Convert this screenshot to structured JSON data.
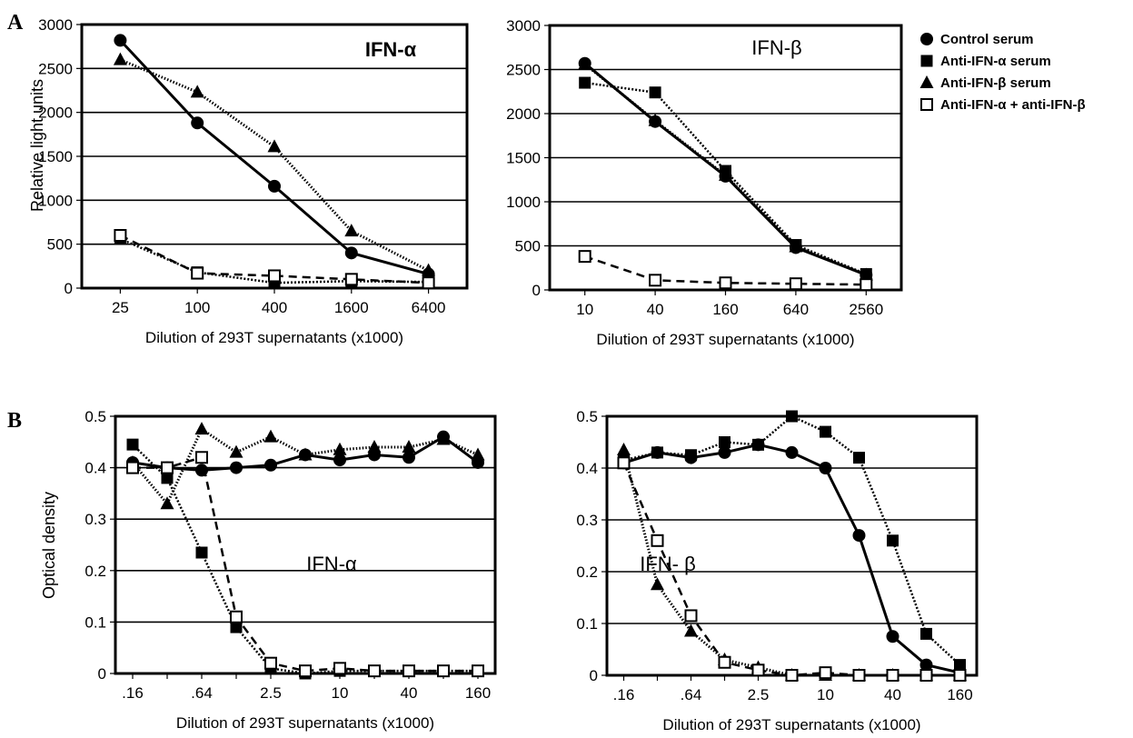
{
  "panels": {
    "A": "A",
    "B": "B"
  },
  "legend": [
    {
      "label": "Control serum",
      "marker": "circle-filled"
    },
    {
      "label": "Anti-IFN-α serum",
      "marker": "square-filled"
    },
    {
      "label": "Anti-IFN-β serum",
      "marker": "triangle-filled"
    },
    {
      "label": "Anti-IFN-α + anti-IFN-β",
      "marker": "square-open"
    }
  ],
  "chart_data": [
    {
      "type": "line",
      "title": "IFN-α",
      "xlabel": "Dilution of 293T supernatants (x1000)",
      "ylabel": "Relative light units",
      "categories": [
        "25",
        "100",
        "400",
        "1600",
        "6400"
      ],
      "ylim": [
        0,
        3000
      ],
      "yticks": [
        "0",
        "500",
        "1000",
        "1500",
        "2000",
        "2500",
        "3000"
      ],
      "grid": "horizontal",
      "series": [
        {
          "name": "Control serum",
          "values": [
            2820,
            1880,
            1160,
            400,
            160
          ]
        },
        {
          "name": "Anti-IFN-α serum",
          "values": [
            560,
            180,
            60,
            80,
            70
          ]
        },
        {
          "name": "Anti-IFN-β serum",
          "values": [
            2600,
            2230,
            1610,
            650,
            200
          ]
        },
        {
          "name": "Anti-IFN-α + anti-IFN-β",
          "values": [
            600,
            170,
            140,
            100,
            60
          ]
        }
      ]
    },
    {
      "type": "line",
      "title": "IFN-β",
      "xlabel": "Dilution of 293T supernatants (x1000)",
      "ylabel": "",
      "categories": [
        "10",
        "40",
        "160",
        "640",
        "2560"
      ],
      "ylim": [
        0,
        3000
      ],
      "yticks": [
        "0",
        "500",
        "1000",
        "1500",
        "2000",
        "2500",
        "3000"
      ],
      "grid": "horizontal",
      "series": [
        {
          "name": "Control serum",
          "values": [
            2570,
            1910,
            1290,
            480,
            170
          ]
        },
        {
          "name": "Anti-IFN-α serum",
          "values": [
            2350,
            2240,
            1350,
            510,
            180
          ]
        },
        {
          "name": "Anti-IFN-β serum",
          "values": [
            2560,
            1920,
            1300,
            490,
            170
          ]
        },
        {
          "name": "Anti-IFN-α + anti-IFN-β",
          "values": [
            380,
            110,
            80,
            70,
            60
          ]
        }
      ]
    },
    {
      "type": "line",
      "title": "IFN-α",
      "xlabel": "Dilution of 293T supernatants (x1000)",
      "ylabel": "Optical density",
      "x": [
        ".16",
        "",
        ".64",
        "",
        "2.5",
        "",
        "10",
        "",
        "40",
        "",
        "160"
      ],
      "xticklabels": [
        ".16",
        ".64",
        "2.5",
        "10",
        "40",
        "160"
      ],
      "ylim": [
        0,
        0.5
      ],
      "yticks": [
        "0",
        "0.1",
        "0.2",
        "0.3",
        "0.4",
        "0.5"
      ],
      "grid": "horizontal",
      "series": [
        {
          "name": "Control serum",
          "values": [
            0.41,
            0.4,
            0.395,
            0.4,
            0.405,
            0.425,
            0.415,
            0.425,
            0.42,
            0.46,
            0.41
          ]
        },
        {
          "name": "Anti-IFN-α serum",
          "values": [
            0.445,
            0.38,
            0.235,
            0.09,
            0.01,
            0.0,
            0.005,
            0.005,
            0.005,
            0.005,
            0.005
          ]
        },
        {
          "name": "Anti-IFN-β serum",
          "values": [
            0.41,
            0.33,
            0.475,
            0.43,
            0.46,
            0.425,
            0.435,
            0.44,
            0.44,
            0.455,
            0.425
          ]
        },
        {
          "name": "Anti-IFN-α + anti-IFN-β",
          "values": [
            0.4,
            0.4,
            0.42,
            0.11,
            0.02,
            0.005,
            0.01,
            0.005,
            0.005,
            0.005,
            0.005
          ]
        }
      ]
    },
    {
      "type": "line",
      "title": "IFN- β",
      "xlabel": "Dilution of 293T supernatants (x1000)",
      "ylabel": "",
      "x": [
        ".16",
        "",
        ".64",
        "",
        "2.5",
        "",
        "10",
        "",
        "40",
        "",
        "160"
      ],
      "xticklabels": [
        ".16",
        ".64",
        "2.5",
        "10",
        "40",
        "160"
      ],
      "ylim": [
        0,
        0.5
      ],
      "yticks": [
        "0",
        "0.1",
        "0.2",
        "0.3",
        "0.4",
        "0.5"
      ],
      "grid": "horizontal",
      "series": [
        {
          "name": "Control serum",
          "values": [
            0.41,
            0.43,
            0.42,
            0.43,
            0.445,
            0.43,
            0.4,
            0.27,
            0.075,
            0.02,
            0.005
          ]
        },
        {
          "name": "Anti-IFN-α serum",
          "values": [
            0.415,
            0.43,
            0.425,
            0.45,
            0.445,
            0.5,
            0.47,
            0.42,
            0.26,
            0.08,
            0.02
          ]
        },
        {
          "name": "Anti-IFN-β serum",
          "values": [
            0.435,
            0.175,
            0.085,
            0.03,
            0.015,
            0.0,
            0.0,
            0.0,
            0.0,
            0.0,
            0.0
          ]
        },
        {
          "name": "Anti-IFN-α + anti-IFN-β",
          "values": [
            0.41,
            0.26,
            0.115,
            0.025,
            0.01,
            0.0,
            0.005,
            0.0,
            0.0,
            0.0,
            0.0
          ]
        }
      ]
    }
  ]
}
